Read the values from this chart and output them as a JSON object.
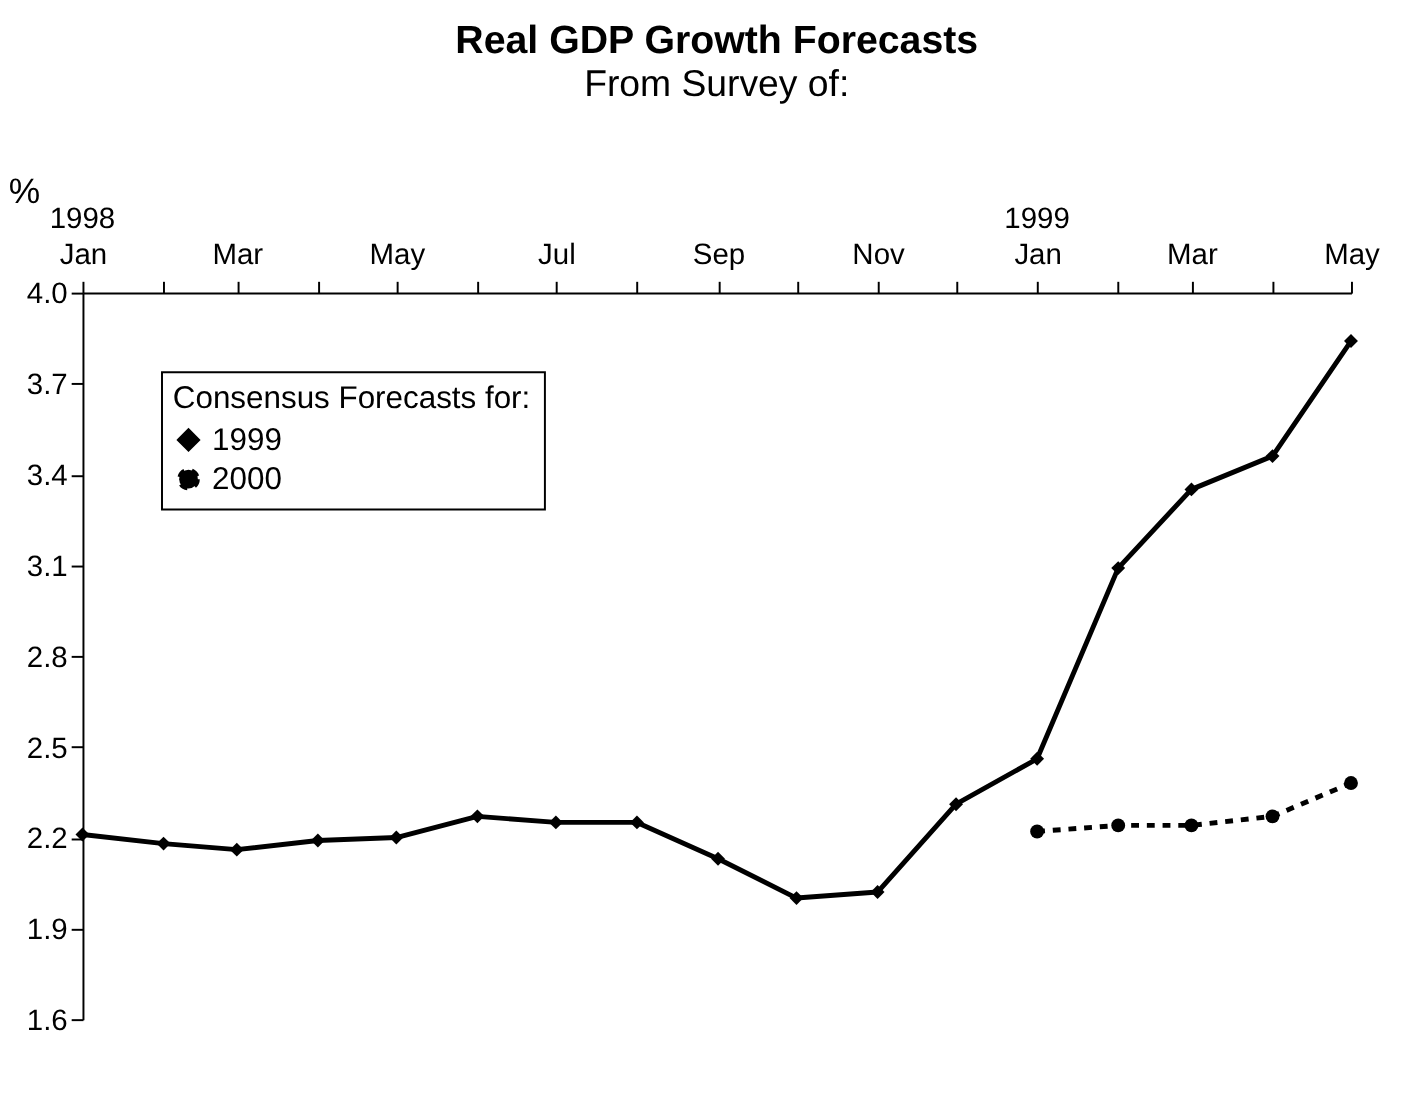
{
  "chart_data": {
    "type": "line",
    "title": "Real GDP Growth Forecasts",
    "subtitle": "From Survey of:",
    "ylabel": "%",
    "legend_title": "Consensus Forecasts for:",
    "legend": "top left",
    "grid": false,
    "xlim": [
      "1998-01",
      "1999-05"
    ],
    "xticks": [
      {
        "value": "1998-01",
        "label": "Jan"
      },
      {
        "value": "1998-02",
        "label": null
      },
      {
        "value": "1998-03",
        "label": "Mar"
      },
      {
        "value": "1998-04",
        "label": null
      },
      {
        "value": "1998-05",
        "label": "May"
      },
      {
        "value": "1998-06",
        "label": null
      },
      {
        "value": "1998-07",
        "label": "Jul"
      },
      {
        "value": "1998-08",
        "label": null
      },
      {
        "value": "1998-09",
        "label": "Sep"
      },
      {
        "value": "1998-10",
        "label": null
      },
      {
        "value": "1998-11",
        "label": "Nov"
      },
      {
        "value": "1998-12",
        "label": null
      },
      {
        "value": "1999-01",
        "label": "Jan"
      },
      {
        "value": "1999-02",
        "label": null
      },
      {
        "value": "1999-03",
        "label": "Mar"
      },
      {
        "value": "1999-04",
        "label": null
      },
      {
        "value": "1999-05",
        "label": "May"
      }
    ],
    "ylim": [
      1.6,
      4.0
    ],
    "yticks": [
      1.6,
      1.9,
      2.2,
      2.5,
      2.8,
      3.1,
      3.4,
      3.7,
      {
        "value": 4.0,
        "label": "4.0"
      }
    ],
    "annotations": [
      "1998",
      "1999"
    ],
    "series": [
      {
        "name": "1999",
        "color": "#000000",
        "marker": "diamond",
        "line_style": "solid",
        "x": [
          "1998-01",
          "1998-02",
          "1998-03",
          "1998-04",
          "1998-05",
          "1998-06",
          "1998-07",
          "1998-08",
          "1998-09",
          "1998-10",
          "1998-11",
          "1998-12",
          "1999-01",
          "1999-02",
          "1999-03",
          "1999-04",
          "1999-05"
        ],
        "values": [
          2.21,
          2.18,
          2.16,
          2.19,
          2.2,
          2.27,
          2.25,
          2.25,
          2.13,
          2.0,
          2.02,
          2.31,
          2.46,
          3.09,
          3.35,
          3.46,
          3.84
        ]
      },
      {
        "name": "2000",
        "color": "#000000",
        "marker": "circle",
        "line_style": "dashed",
        "x": [
          "1999-01",
          "1999-02",
          "1999-03",
          "1999-04",
          "1999-05"
        ],
        "values": [
          2.22,
          2.24,
          2.24,
          2.27,
          2.38
        ]
      }
    ]
  }
}
